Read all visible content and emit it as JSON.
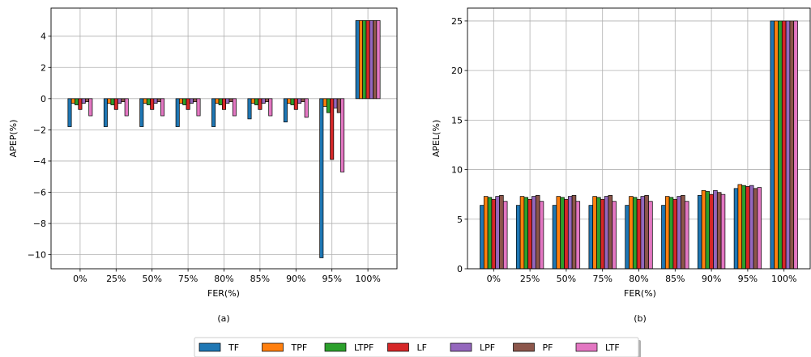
{
  "chart_data": [
    {
      "panel": "(a)",
      "type": "bar",
      "xlabel": "FER(%)",
      "ylabel": "APEP(%)",
      "ylim": [
        -10.9,
        5.8
      ],
      "yticks": [
        -10,
        -8,
        -6,
        -4,
        -2,
        0,
        2,
        4
      ],
      "ytick_labels": [
        "−10",
        "−8",
        "−6",
        "−4",
        "−2",
        "0",
        "2",
        "4"
      ],
      "grid": true,
      "categories": [
        "0%",
        "25%",
        "50%",
        "75%",
        "80%",
        "85%",
        "90%",
        "95%",
        "100%"
      ],
      "series": [
        {
          "name": "TF",
          "values": [
            -1.8,
            -1.8,
            -1.8,
            -1.8,
            -1.8,
            -1.3,
            -1.5,
            -10.2,
            5.0
          ]
        },
        {
          "name": "TPF",
          "values": [
            -0.3,
            -0.3,
            -0.3,
            -0.3,
            -0.3,
            -0.3,
            -0.3,
            -0.5,
            5.0
          ]
        },
        {
          "name": "LTPF",
          "values": [
            -0.4,
            -0.4,
            -0.4,
            -0.4,
            -0.4,
            -0.4,
            -0.4,
            -0.9,
            5.0
          ]
        },
        {
          "name": "LF",
          "values": [
            -0.7,
            -0.7,
            -0.7,
            -0.7,
            -0.7,
            -0.7,
            -0.7,
            -3.9,
            5.0
          ]
        },
        {
          "name": "LPF",
          "values": [
            -0.3,
            -0.3,
            -0.3,
            -0.3,
            -0.3,
            -0.3,
            -0.3,
            -0.6,
            5.0
          ]
        },
        {
          "name": "PF",
          "values": [
            -0.2,
            -0.2,
            -0.2,
            -0.2,
            -0.2,
            -0.2,
            -0.2,
            -0.9,
            5.0
          ]
        },
        {
          "name": "LTF",
          "values": [
            -1.1,
            -1.1,
            -1.1,
            -1.1,
            -1.1,
            -1.1,
            -1.2,
            -4.7,
            5.0
          ]
        }
      ]
    },
    {
      "panel": "(b)",
      "type": "bar",
      "xlabel": "FER(%)",
      "ylabel": "APEL(%)",
      "ylim": [
        0,
        26.3
      ],
      "yticks": [
        0,
        5,
        10,
        15,
        20,
        25
      ],
      "ytick_labels": [
        "0",
        "5",
        "10",
        "15",
        "20",
        "25"
      ],
      "grid": true,
      "categories": [
        "0%",
        "25%",
        "50%",
        "75%",
        "80%",
        "85%",
        "90%",
        "95%",
        "100%"
      ],
      "series": [
        {
          "name": "TF",
          "values": [
            6.4,
            6.4,
            6.4,
            6.4,
            6.4,
            6.4,
            7.4,
            8.1,
            25.0
          ]
        },
        {
          "name": "TPF",
          "values": [
            7.3,
            7.3,
            7.3,
            7.3,
            7.3,
            7.3,
            7.9,
            8.5,
            25.0
          ]
        },
        {
          "name": "LTPF",
          "values": [
            7.2,
            7.2,
            7.2,
            7.2,
            7.2,
            7.2,
            7.8,
            8.4,
            25.0
          ]
        },
        {
          "name": "LF",
          "values": [
            7.0,
            7.0,
            7.0,
            7.0,
            7.0,
            7.0,
            7.5,
            8.3,
            25.0
          ]
        },
        {
          "name": "LPF",
          "values": [
            7.3,
            7.3,
            7.3,
            7.3,
            7.3,
            7.3,
            7.9,
            8.4,
            25.0
          ]
        },
        {
          "name": "PF",
          "values": [
            7.4,
            7.4,
            7.4,
            7.4,
            7.4,
            7.4,
            7.7,
            8.1,
            25.0
          ]
        },
        {
          "name": "LTF",
          "values": [
            6.8,
            6.8,
            6.8,
            6.8,
            6.8,
            6.8,
            7.5,
            8.2,
            25.0
          ]
        }
      ]
    }
  ],
  "legend": {
    "placement": "bottom-center",
    "entries": [
      "TF",
      "TPF",
      "LTPF",
      "LF",
      "LPF",
      "PF",
      "LTF"
    ]
  },
  "colors": {
    "TF": "#1f77b4",
    "TPF": "#ff7f0e",
    "LTPF": "#2ca02c",
    "LF": "#d62728",
    "LPF": "#9467bd",
    "PF": "#8c564b",
    "LTF": "#e377c2"
  }
}
